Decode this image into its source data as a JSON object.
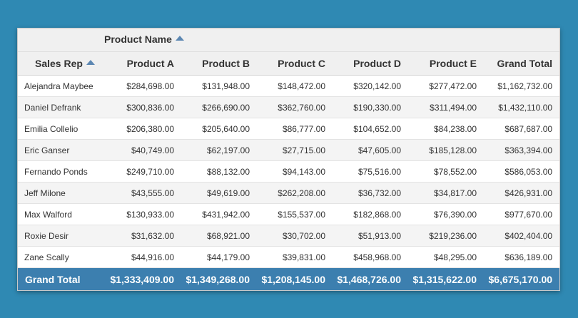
{
  "column_field": {
    "label": "Product Name"
  },
  "row_field": {
    "label": "Sales Rep"
  },
  "columns": [
    "Product A",
    "Product B",
    "Product C",
    "Product D",
    "Product E",
    "Grand Total"
  ],
  "rows": [
    {
      "rep": "Alejandra Maybee",
      "values": [
        "$284,698.00",
        "$131,948.00",
        "$148,472.00",
        "$320,142.00",
        "$277,472.00",
        "$1,162,732.00"
      ]
    },
    {
      "rep": "Daniel Defrank",
      "values": [
        "$300,836.00",
        "$266,690.00",
        "$362,760.00",
        "$190,330.00",
        "$311,494.00",
        "$1,432,110.00"
      ]
    },
    {
      "rep": "Emilia Collelio",
      "values": [
        "$206,380.00",
        "$205,640.00",
        "$86,777.00",
        "$104,652.00",
        "$84,238.00",
        "$687,687.00"
      ]
    },
    {
      "rep": "Eric Ganser",
      "values": [
        "$40,749.00",
        "$62,197.00",
        "$27,715.00",
        "$47,605.00",
        "$185,128.00",
        "$363,394.00"
      ]
    },
    {
      "rep": "Fernando Ponds",
      "values": [
        "$249,710.00",
        "$88,132.00",
        "$94,143.00",
        "$75,516.00",
        "$78,552.00",
        "$586,053.00"
      ]
    },
    {
      "rep": "Jeff Milone",
      "values": [
        "$43,555.00",
        "$49,619.00",
        "$262,208.00",
        "$36,732.00",
        "$34,817.00",
        "$426,931.00"
      ]
    },
    {
      "rep": "Max Walford",
      "values": [
        "$130,933.00",
        "$431,942.00",
        "$155,537.00",
        "$182,868.00",
        "$76,390.00",
        "$977,670.00"
      ]
    },
    {
      "rep": "Roxie Desir",
      "values": [
        "$31,632.00",
        "$68,921.00",
        "$30,702.00",
        "$51,913.00",
        "$219,236.00",
        "$402,404.00"
      ]
    },
    {
      "rep": "Zane Scally",
      "values": [
        "$44,916.00",
        "$44,179.00",
        "$39,831.00",
        "$458,968.00",
        "$48,295.00",
        "$636,189.00"
      ]
    }
  ],
  "grand_total": {
    "label": "Grand Total",
    "values": [
      "$1,333,409.00",
      "$1,349,268.00",
      "$1,208,145.00",
      "$1,468,726.00",
      "$1,315,622.00",
      "$6,675,170.00"
    ]
  },
  "colors": {
    "background": "#2f89b3",
    "total_row": "#3c7faf",
    "sort_indicator": "#5c87b2"
  },
  "icons": {
    "sort": "sort-ascending-icon"
  }
}
